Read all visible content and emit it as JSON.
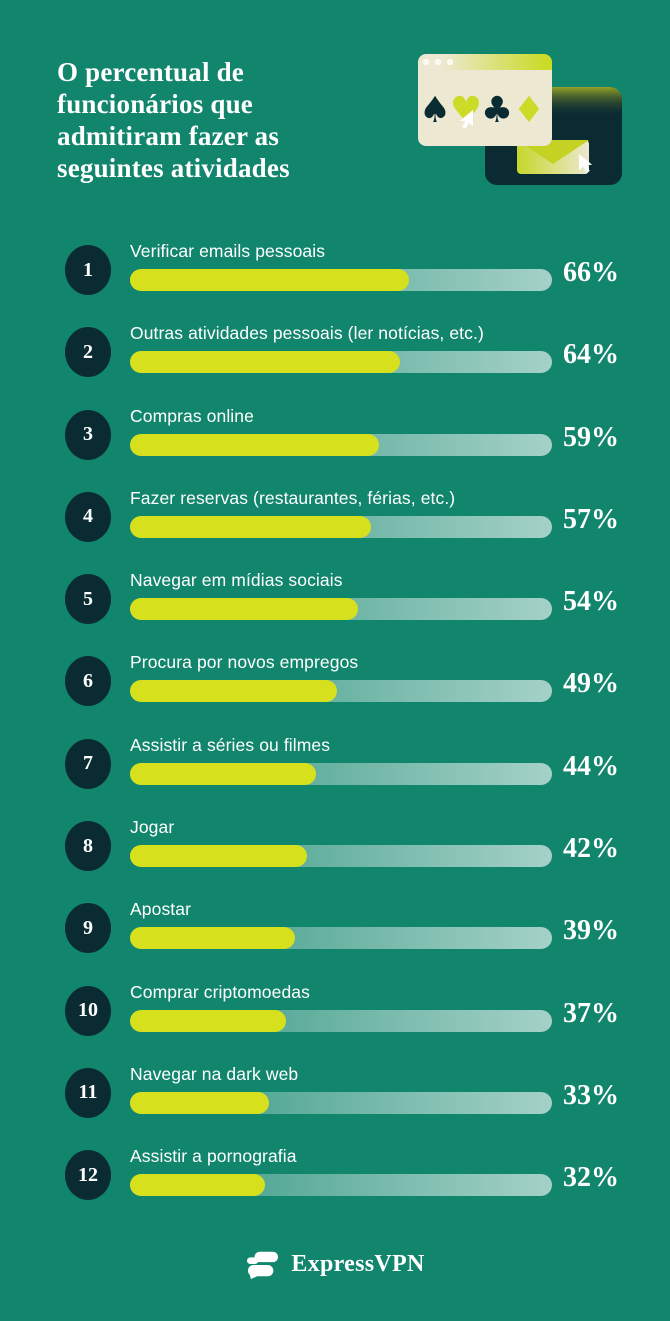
{
  "colors": {
    "background": "#12866D",
    "navy": "#0B2B33",
    "bar_fill": "#D6E01C",
    "illustration_lime": "#CBDB28",
    "cream": "#ECE8D1",
    "track_end": "#A7C7AF",
    "text": "#FFFFFF"
  },
  "header": {
    "title": "O percentual de\nfuncionários que\nadmitiram fazer as\nseguintes atividades"
  },
  "illustration": {
    "icons": [
      "browser-window-icon",
      "spade-icon",
      "heart-icon",
      "club-icon",
      "diamond-icon",
      "cursor-icon",
      "email-window-icon",
      "envelope-icon"
    ],
    "suits": {
      "spade": "♠",
      "heart": "♥",
      "club": "♣",
      "diamond": "♦"
    }
  },
  "items": [
    {
      "rank": "1",
      "label": "Verificar emails pessoais",
      "value": 66,
      "pct": "66%"
    },
    {
      "rank": "2",
      "label": "Outras atividades pessoais (ler notícias, etc.)",
      "value": 64,
      "pct": "64%"
    },
    {
      "rank": "3",
      "label": "Compras online",
      "value": 59,
      "pct": "59%"
    },
    {
      "rank": "4",
      "label": "Fazer reservas (restaurantes, férias, etc.)",
      "value": 57,
      "pct": "57%"
    },
    {
      "rank": "5",
      "label": "Navegar em mídias sociais",
      "value": 54,
      "pct": "54%"
    },
    {
      "rank": "6",
      "label": "Procura por novos empregos",
      "value": 49,
      "pct": "49%"
    },
    {
      "rank": "7",
      "label": "Assistir a séries ou filmes",
      "value": 44,
      "pct": "44%"
    },
    {
      "rank": "8",
      "label": "Jogar",
      "value": 42,
      "pct": "42%"
    },
    {
      "rank": "9",
      "label": "Apostar",
      "value": 39,
      "pct": "39%"
    },
    {
      "rank": "10",
      "label": "Comprar criptomoedas",
      "value": 37,
      "pct": "37%"
    },
    {
      "rank": "11",
      "label": "Navegar na dark web",
      "value": 33,
      "pct": "33%"
    },
    {
      "rank": "12",
      "label": "Assistir a pornografia",
      "value": 32,
      "pct": "32%"
    }
  ],
  "footer": {
    "brand": "ExpressVPN"
  },
  "chart_data": {
    "type": "bar",
    "orientation": "horizontal",
    "title": "O percentual de funcionários que admitiram fazer as seguintes atividades",
    "unit": "%",
    "xlim": [
      0,
      100
    ],
    "grid": false,
    "legend": false,
    "categories": [
      "Verificar emails pessoais",
      "Outras atividades pessoais (ler notícias, etc.)",
      "Compras online",
      "Fazer reservas (restaurantes, férias, etc.)",
      "Navegar em mídias sociais",
      "Procura por novos empregos",
      "Assistir a séries ou filmes",
      "Jogar",
      "Apostar",
      "Comprar criptomoedas",
      "Navegar na dark web",
      "Assistir a pornografia"
    ],
    "values": [
      66,
      64,
      59,
      57,
      54,
      49,
      44,
      42,
      39,
      37,
      33,
      32
    ]
  }
}
